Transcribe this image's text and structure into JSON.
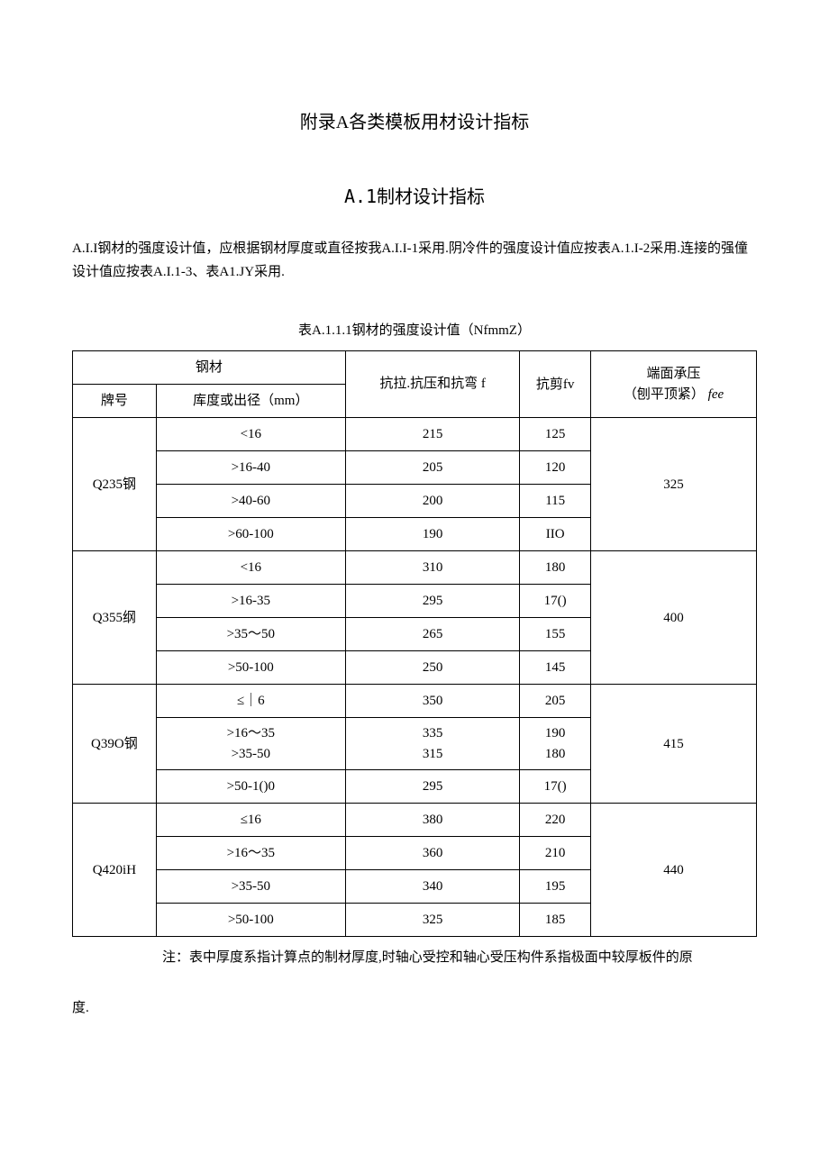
{
  "titles": {
    "main": "附录A各类模板用材设计指标",
    "sub": "A.1制材设计指标"
  },
  "paragraph": "A.I.I钢材的强度设计值，应根据钢材厚度或直径按我A.I.I-1采用.阴冷件的强度设计值应按表A.1.I-2采用.连接的强僮设计值应按表A.I.1-3、表A1.JY采用.",
  "tableCaption": "表A.1.1.1钢材的强度设计值（NfmmZ）",
  "headers": {
    "steel": "钢材",
    "grade": "牌号",
    "thickness": "库度或出径（mm）",
    "tensile": "抗拉.抗压和抗弯 f",
    "shear": "抗剪fv",
    "bearing1": "端面承压",
    "bearing2": "（刨平顶紧） ",
    "bearing_fee": "fee"
  },
  "groups": [
    {
      "grade": "Q235钢",
      "endBearing": "325",
      "rows": [
        {
          "t": "<16",
          "f": "215",
          "fv": "125"
        },
        {
          "t": ">16-40",
          "f": "205",
          "fv": "120"
        },
        {
          "t": ">40-60",
          "f": "200",
          "fv": "115"
        },
        {
          "t": ">60-100",
          "f": "190",
          "fv": "IIO"
        }
      ]
    },
    {
      "grade": "Q355纲",
      "endBearing": "400",
      "rows": [
        {
          "t": "<16",
          "f": "310",
          "fv": "180"
        },
        {
          "t": ">16-35",
          "f": "295",
          "fv": "17()"
        },
        {
          "t": ">35～50",
          "f": "265",
          "fv": "155"
        },
        {
          "t": ">50-100",
          "f": "250",
          "fv": "145"
        }
      ]
    },
    {
      "grade": "Q39O钢",
      "endBearing": "415",
      "rows": [
        {
          "t": "≤｜6",
          "f": "350",
          "fv": "205"
        },
        {
          "t": ">16～35  >35-50",
          "f": "335  315",
          "fv": "190  180",
          "multi": true
        },
        {
          "t": ">50-1()0",
          "f": "295",
          "fv": "17()"
        }
      ]
    },
    {
      "grade": "Q420iH",
      "endBearing": "440",
      "rows": [
        {
          "t": "≤16",
          "f": "380",
          "fv": "220"
        },
        {
          "t": ">16～35",
          "f": "360",
          "fv": "210"
        },
        {
          "t": ">35-50",
          "f": "340",
          "fv": "195"
        },
        {
          "t": ">50-100",
          "f": "325",
          "fv": "185"
        }
      ]
    }
  ],
  "note": "注：表中厚度系指计算点的制材厚度,时轴心受控和轴心受压构件系指极面中较厚板件的原",
  "noteTail": "度."
}
